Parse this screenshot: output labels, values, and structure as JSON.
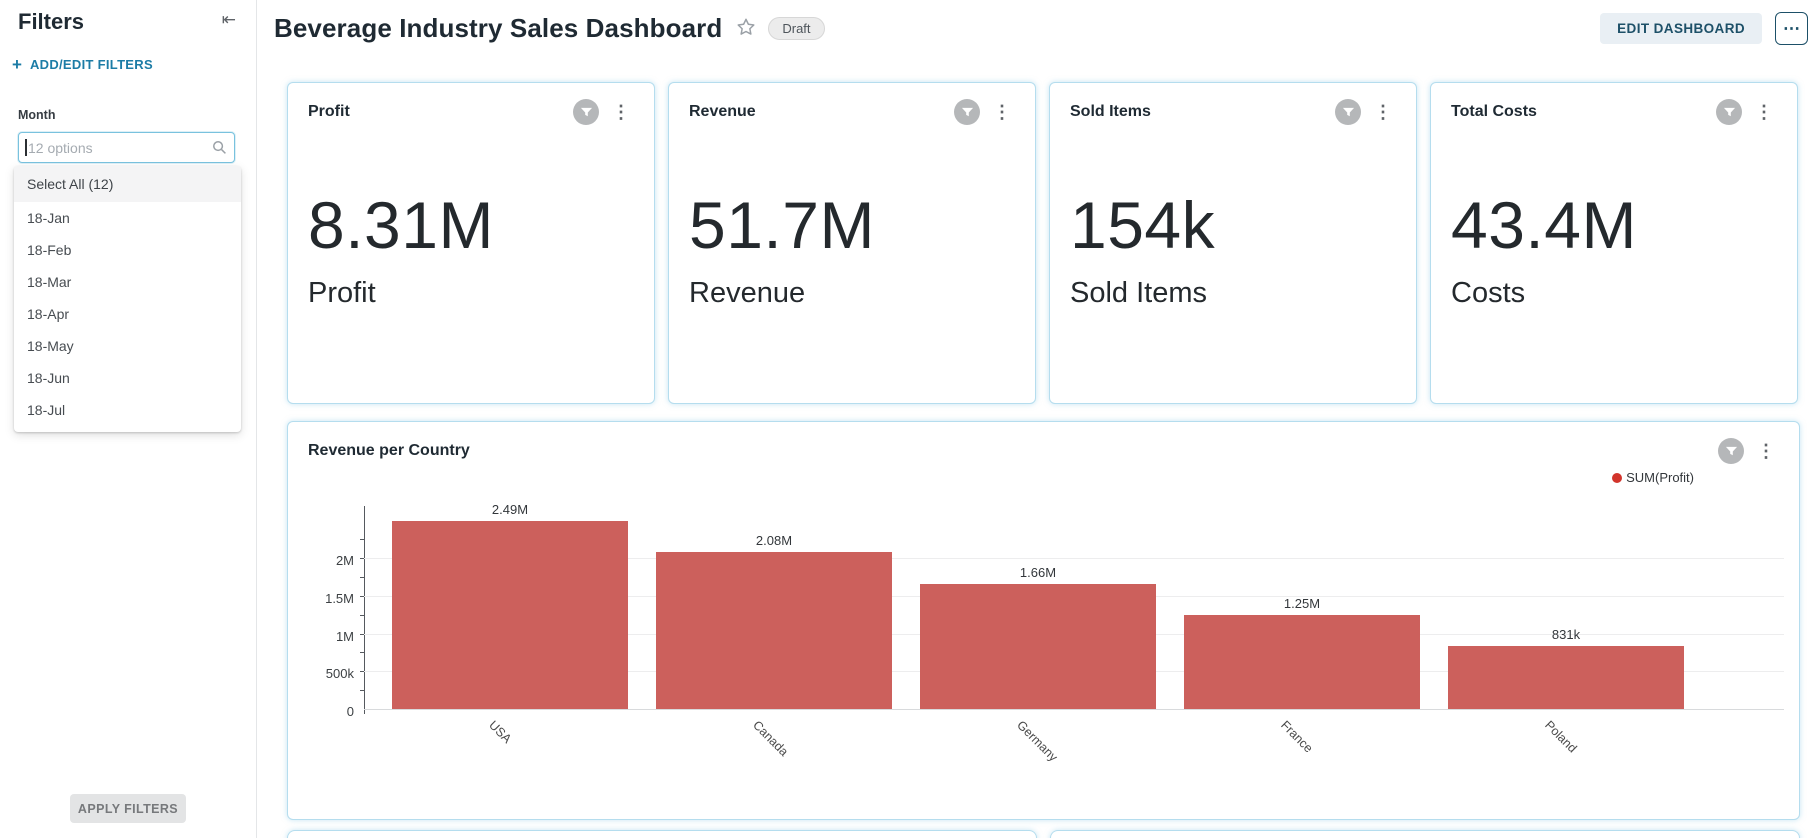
{
  "sidebar": {
    "title": "Filters",
    "add_edit_label": "ADD/EDIT FILTERS",
    "month_filter": {
      "label": "Month",
      "search_placeholder": "12 options",
      "select_all_label": "Select All (12)",
      "options": [
        "18-Jan",
        "18-Feb",
        "18-Mar",
        "18-Apr",
        "18-May",
        "18-Jun",
        "18-Jul"
      ]
    },
    "apply_button_label": "APPLY FILTERS"
  },
  "header": {
    "title": "Beverage Industry Sales Dashboard",
    "status_badge": "Draft",
    "edit_button_label": "EDIT DASHBOARD"
  },
  "icons": {
    "collapse": "⇤",
    "plus": "+",
    "star": "☆",
    "kebab": "⋮",
    "more": "⋯",
    "search": "search-icon",
    "filter": "filter-funnel-icon"
  },
  "kpi_cards": [
    {
      "title": "Profit",
      "value": "8.31M",
      "label": "Profit"
    },
    {
      "title": "Revenue",
      "value": "51.7M",
      "label": "Revenue"
    },
    {
      "title": "Sold Items",
      "value": "154k",
      "label": "Sold Items"
    },
    {
      "title": "Total Costs",
      "value": "43.4M",
      "label": "Costs"
    }
  ],
  "chart_card": {
    "title": "Revenue per Country",
    "legend": [
      {
        "name": "SUM(Profit)",
        "color": "#d2342b"
      }
    ]
  },
  "chart_data": {
    "type": "bar",
    "title": "Revenue per Country",
    "series_name": "SUM(Profit)",
    "categories": [
      "USA",
      "Canada",
      "Germany",
      "France",
      "Poland"
    ],
    "values": [
      2490000,
      2080000,
      1660000,
      1250000,
      831000
    ],
    "value_labels": [
      "2.49M",
      "2.08M",
      "1.66M",
      "1.25M",
      "831k"
    ],
    "xlabel": "",
    "ylabel": "",
    "ylim": [
      0,
      2700000
    ],
    "yticks": [
      {
        "v": 0,
        "label": "0"
      },
      {
        "v": 500000,
        "label": "500k"
      },
      {
        "v": 1000000,
        "label": "1M"
      },
      {
        "v": 1500000,
        "label": "1.5M"
      },
      {
        "v": 2000000,
        "label": "2M"
      }
    ],
    "grid": "horizontal",
    "legend_position": "top-right",
    "bar_color": "#cc605c"
  },
  "colors": {
    "card_border": "#b5ddee",
    "accent_link": "#1c7ca6",
    "edit_button_bg": "#e9eff4",
    "edit_button_text": "#1d5068",
    "bar": "#cc605c",
    "legend_dot": "#d2342b"
  }
}
